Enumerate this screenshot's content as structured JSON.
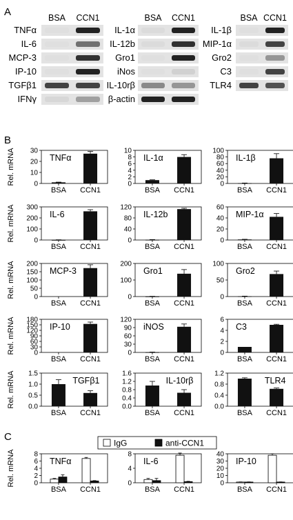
{
  "panel_labels": {
    "a": "A",
    "b": "B",
    "c": "C"
  },
  "gel": {
    "lane_labels": [
      "BSA",
      "CCN1"
    ],
    "groups": [
      {
        "genes": [
          {
            "name": "TNFα",
            "bsa": 0.05,
            "ccn1": 0.95
          },
          {
            "name": "IL-6",
            "bsa": 0.05,
            "ccn1": 0.7
          },
          {
            "name": "MCP-3",
            "bsa": 0.05,
            "ccn1": 0.9
          },
          {
            "name": "IP-10",
            "bsa": 0.05,
            "ccn1": 0.95
          },
          {
            "name": "TGFβ1",
            "bsa": 0.85,
            "ccn1": 0.85
          },
          {
            "name": "IFNγ",
            "bsa": 0.15,
            "ccn1": 0.5
          }
        ]
      },
      {
        "genes": [
          {
            "name": "IL-1α",
            "bsa": 0.1,
            "ccn1": 0.95
          },
          {
            "name": "IL-12b",
            "bsa": 0.1,
            "ccn1": 0.9
          },
          {
            "name": "Gro1",
            "bsa": 0.05,
            "ccn1": 0.95
          },
          {
            "name": "iNos",
            "bsa": 0.05,
            "ccn1": 0.2
          },
          {
            "name": "IL-10rβ",
            "bsa": 0.6,
            "ccn1": 0.55
          },
          {
            "name": "β-actin",
            "bsa": 0.95,
            "ccn1": 0.95
          }
        ]
      },
      {
        "genes": [
          {
            "name": "IL-1β",
            "bsa": 0.05,
            "ccn1": 0.95
          },
          {
            "name": "MIP-1α",
            "bsa": 0.1,
            "ccn1": 0.85
          },
          {
            "name": "Gro2",
            "bsa": 0.05,
            "ccn1": 0.55
          },
          {
            "name": "C3",
            "bsa": 0.05,
            "ccn1": 0.85
          },
          {
            "name": "TLR4",
            "bsa": 0.85,
            "ccn1": 0.8
          }
        ]
      }
    ]
  },
  "chart_data": [
    {
      "type": "bar",
      "title": "TNFα",
      "ylabel": "Rel. mRNA",
      "categories": [
        "BSA",
        "CCN1"
      ],
      "values": [
        1,
        27
      ],
      "errors": [
        0.2,
        2
      ],
      "ylim": [
        0,
        30
      ],
      "yticks": [
        0,
        10,
        20,
        30
      ]
    },
    {
      "type": "bar",
      "title": "IL-1α",
      "ylabel": "",
      "categories": [
        "BSA",
        "CCN1"
      ],
      "values": [
        1,
        8
      ],
      "errors": [
        0.1,
        0.7
      ],
      "ylim": [
        0,
        10
      ],
      "yticks": [
        0,
        2,
        4,
        6,
        8,
        10
      ]
    },
    {
      "type": "bar",
      "title": "IL-1β",
      "ylabel": "",
      "categories": [
        "BSA",
        "CCN1"
      ],
      "values": [
        1,
        76
      ],
      "errors": [
        0.3,
        14
      ],
      "ylim": [
        0,
        100
      ],
      "yticks": [
        0,
        20,
        40,
        60,
        80,
        100
      ]
    },
    {
      "type": "bar",
      "title": "IL-6",
      "ylabel": "Rel. mRNA",
      "categories": [
        "BSA",
        "CCN1"
      ],
      "values": [
        1,
        260
      ],
      "errors": [
        1,
        15
      ],
      "ylim": [
        0,
        300
      ],
      "yticks": [
        0,
        100,
        200,
        300
      ]
    },
    {
      "type": "bar",
      "title": "IL-12b",
      "ylabel": "",
      "categories": [
        "BSA",
        "CCN1"
      ],
      "values": [
        1,
        112
      ],
      "errors": [
        0.5,
        3
      ],
      "ylim": [
        0,
        120
      ],
      "yticks": [
        0,
        40,
        80,
        120
      ]
    },
    {
      "type": "bar",
      "title": "MIP-1α",
      "ylabel": "",
      "categories": [
        "BSA",
        "CCN1"
      ],
      "values": [
        1,
        42
      ],
      "errors": [
        0.3,
        6
      ],
      "ylim": [
        0,
        60
      ],
      "yticks": [
        0,
        20,
        40,
        60
      ]
    },
    {
      "type": "bar",
      "title": "MCP-3",
      "ylabel": "Rel. mRNA",
      "categories": [
        "BSA",
        "CCN1"
      ],
      "values": [
        0,
        172
      ],
      "errors": [
        0,
        20
      ],
      "ylim": [
        0,
        200
      ],
      "yticks": [
        0,
        50,
        100,
        150,
        200
      ]
    },
    {
      "type": "bar",
      "title": "Gro1",
      "ylabel": "",
      "categories": [
        "BSA",
        "CCN1"
      ],
      "values": [
        1,
        138
      ],
      "errors": [
        0.5,
        25
      ],
      "ylim": [
        0,
        200
      ],
      "yticks": [
        0,
        100,
        200
      ]
    },
    {
      "type": "bar",
      "title": "Gro2",
      "ylabel": "",
      "categories": [
        "BSA",
        "CCN1"
      ],
      "values": [
        1,
        68
      ],
      "errors": [
        0.3,
        9
      ],
      "ylim": [
        0,
        100
      ],
      "yticks": [
        0,
        50,
        100
      ]
    },
    {
      "type": "bar",
      "title": "IP-10",
      "ylabel": "Rel. mRNA",
      "categories": [
        "BSA",
        "CCN1"
      ],
      "values": [
        0,
        155
      ],
      "errors": [
        0,
        10
      ],
      "ylim": [
        0,
        180
      ],
      "yticks": [
        0,
        30,
        60,
        90,
        120,
        150,
        180
      ]
    },
    {
      "type": "bar",
      "title": "iNOS",
      "ylabel": "",
      "categories": [
        "BSA",
        "CCN1"
      ],
      "values": [
        1,
        93
      ],
      "errors": [
        0.3,
        10
      ],
      "ylim": [
        0,
        120
      ],
      "yticks": [
        0,
        30,
        60,
        90,
        120
      ]
    },
    {
      "type": "bar",
      "title": "C3",
      "ylabel": "",
      "categories": [
        "BSA",
        "CCN1"
      ],
      "values": [
        1,
        5
      ],
      "errors": [
        0,
        0.1
      ],
      "ylim": [
        0,
        6
      ],
      "yticks": [
        0,
        2,
        4,
        6
      ]
    },
    {
      "type": "bar",
      "title": "TGFβ1",
      "ylabel": "Rel. mRNA",
      "categories": [
        "BSA",
        "CCN1"
      ],
      "values": [
        1,
        0.6
      ],
      "errors": [
        0.2,
        0.1
      ],
      "ylim": [
        0,
        1.5
      ],
      "yticks": [
        0,
        0.5,
        1.0,
        1.5
      ],
      "decimals": 1,
      "title_right": true
    },
    {
      "type": "bar",
      "title": "IL-10rβ",
      "ylabel": "",
      "categories": [
        "BSA",
        "CCN1"
      ],
      "values": [
        1,
        0.65
      ],
      "errors": [
        0.2,
        0.15
      ],
      "ylim": [
        0,
        1.6
      ],
      "yticks": [
        0,
        0.4,
        0.8,
        1.2,
        1.6
      ],
      "decimals": 1,
      "title_right": true
    },
    {
      "type": "bar",
      "title": "TLR4",
      "ylabel": "",
      "categories": [
        "BSA",
        "CCN1"
      ],
      "values": [
        1,
        0.63
      ],
      "errors": [
        0.03,
        0.03
      ],
      "ylim": [
        0,
        1.2
      ],
      "yticks": [
        0,
        0.4,
        0.8,
        1.2
      ],
      "decimals": 1,
      "title_right": true
    },
    {
      "type": "bar",
      "title": "TNFα",
      "ylabel": "Rel. mRNA",
      "categories": [
        "BSA",
        "CCN1"
      ],
      "series": [
        {
          "name": "IgG",
          "values": [
            1.0,
            6.7
          ],
          "errors": [
            0.2,
            0.3
          ]
        },
        {
          "name": "anti-CCN1",
          "values": [
            1.6,
            0.5
          ],
          "errors": [
            0.6,
            0.1
          ]
        }
      ],
      "ylim": [
        0,
        8
      ],
      "yticks": [
        0,
        2,
        4,
        6,
        8
      ],
      "legend": "top"
    },
    {
      "type": "bar",
      "title": "IL-6",
      "ylabel": "",
      "categories": [
        "BSA",
        "CCN1"
      ],
      "series": [
        {
          "name": "IgG",
          "values": [
            0.9,
            7.6
          ],
          "errors": [
            0.3,
            0.6
          ]
        },
        {
          "name": "anti-CCN1",
          "values": [
            0.6,
            0.3
          ],
          "errors": [
            0.6,
            0.1
          ]
        }
      ],
      "ylim": [
        0,
        8
      ],
      "yticks": [
        0,
        4,
        8
      ]
    },
    {
      "type": "bar",
      "title": "IP-10",
      "ylabel": "",
      "categories": [
        "BSA",
        "CCN1"
      ],
      "series": [
        {
          "name": "IgG",
          "values": [
            1,
            38
          ],
          "errors": [
            0.2,
            2
          ]
        },
        {
          "name": "anti-CCN1",
          "values": [
            1,
            1
          ],
          "errors": [
            0.2,
            0.2
          ]
        }
      ],
      "ylim": [
        0,
        40
      ],
      "yticks": [
        0,
        10,
        20,
        30,
        40
      ]
    }
  ]
}
